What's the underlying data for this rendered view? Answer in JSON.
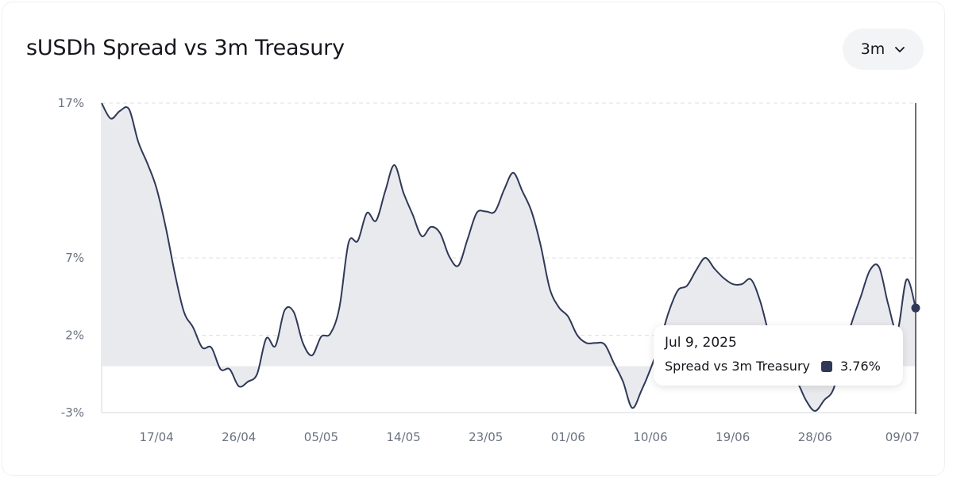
{
  "header": {
    "title": "sUSDh Spread vs 3m Treasury",
    "range_label": "3m",
    "range_icon": "chevron-down-icon"
  },
  "colors": {
    "line": "#2f3957",
    "area": "#e9eaee",
    "grid": "#dcdfe4",
    "axis": "#d4d7dc",
    "cursor": "#111111"
  },
  "tooltip": {
    "date": "Jul 9, 2025",
    "series_name": "Spread vs 3m Treasury",
    "value": "3.76%"
  },
  "chart_data": {
    "type": "area",
    "title": "sUSDh Spread vs 3m Treasury",
    "xlabel": "",
    "ylabel": "",
    "y_ticks": [
      -3,
      2,
      7,
      17
    ],
    "y_tick_labels": [
      "-3%",
      "2%",
      "7%",
      "17%"
    ],
    "ylim": [
      -3,
      17
    ],
    "x_range": [
      "2025-04-11",
      "2025-07-09"
    ],
    "x_ticks": [
      "2025-04-17",
      "2025-04-26",
      "2025-05-05",
      "2025-05-14",
      "2025-05-23",
      "2025-06-01",
      "2025-06-10",
      "2025-06-19",
      "2025-06-28",
      "2025-07-09"
    ],
    "x_tick_labels": [
      "17/04",
      "26/04",
      "05/05",
      "14/05",
      "23/05",
      "01/06",
      "10/06",
      "19/06",
      "28/06",
      "09/07"
    ],
    "grid": true,
    "series": [
      {
        "name": "Spread vs 3m Treasury",
        "x": [
          "2025-04-11",
          "2025-04-12",
          "2025-04-13",
          "2025-04-14",
          "2025-04-15",
          "2025-04-16",
          "2025-04-17",
          "2025-04-18",
          "2025-04-19",
          "2025-04-20",
          "2025-04-21",
          "2025-04-22",
          "2025-04-23",
          "2025-04-24",
          "2025-04-25",
          "2025-04-26",
          "2025-04-27",
          "2025-04-28",
          "2025-04-29",
          "2025-04-30",
          "2025-05-01",
          "2025-05-02",
          "2025-05-03",
          "2025-05-04",
          "2025-05-05",
          "2025-05-06",
          "2025-05-07",
          "2025-05-08",
          "2025-05-09",
          "2025-05-10",
          "2025-05-11",
          "2025-05-12",
          "2025-05-13",
          "2025-05-14",
          "2025-05-15",
          "2025-05-16",
          "2025-05-17",
          "2025-05-18",
          "2025-05-19",
          "2025-05-20",
          "2025-05-21",
          "2025-05-22",
          "2025-05-23",
          "2025-05-24",
          "2025-05-25",
          "2025-05-26",
          "2025-05-27",
          "2025-05-28",
          "2025-05-29",
          "2025-05-30",
          "2025-05-31",
          "2025-06-01",
          "2025-06-02",
          "2025-06-03",
          "2025-06-04",
          "2025-06-05",
          "2025-06-06",
          "2025-06-07",
          "2025-06-08",
          "2025-06-09",
          "2025-06-10",
          "2025-06-11",
          "2025-06-12",
          "2025-06-13",
          "2025-06-14",
          "2025-06-15",
          "2025-06-16",
          "2025-06-17",
          "2025-06-18",
          "2025-06-19",
          "2025-06-20",
          "2025-06-21",
          "2025-06-22",
          "2025-06-23",
          "2025-06-24",
          "2025-06-25",
          "2025-06-26",
          "2025-06-27",
          "2025-06-28",
          "2025-06-29",
          "2025-06-30",
          "2025-07-01",
          "2025-07-02",
          "2025-07-03",
          "2025-07-04",
          "2025-07-05",
          "2025-07-06",
          "2025-07-07",
          "2025-07-08",
          "2025-07-09"
        ],
        "values": [
          17.0,
          16.0,
          16.5,
          16.6,
          14.5,
          13.1,
          11.5,
          9.0,
          6.0,
          3.5,
          2.5,
          1.2,
          1.2,
          -0.2,
          -0.2,
          -1.3,
          -1.0,
          -0.5,
          1.8,
          1.3,
          3.6,
          3.5,
          1.5,
          0.7,
          1.9,
          2.1,
          3.8,
          8.0,
          8.1,
          9.9,
          9.4,
          11.3,
          13.0,
          11.2,
          9.8,
          8.4,
          9.0,
          8.6,
          7.1,
          6.5,
          8.2,
          9.9,
          10.0,
          10.0,
          11.4,
          12.5,
          11.3,
          10.0,
          7.8,
          5.0,
          3.8,
          3.2,
          2.0,
          1.5,
          1.5,
          1.4,
          0.2,
          -1.0,
          -2.7,
          -1.6,
          -0.2,
          1.5,
          3.5,
          4.9,
          5.2,
          6.2,
          7.0,
          6.3,
          5.7,
          5.3,
          5.3,
          5.6,
          4.2,
          2.0,
          0.5,
          -0.8,
          -1.0,
          -2.2,
          -2.9,
          -2.2,
          -1.5,
          0.8,
          2.8,
          4.5,
          6.2,
          6.4,
          4.0,
          2.3,
          5.6,
          3.76
        ]
      }
    ]
  }
}
